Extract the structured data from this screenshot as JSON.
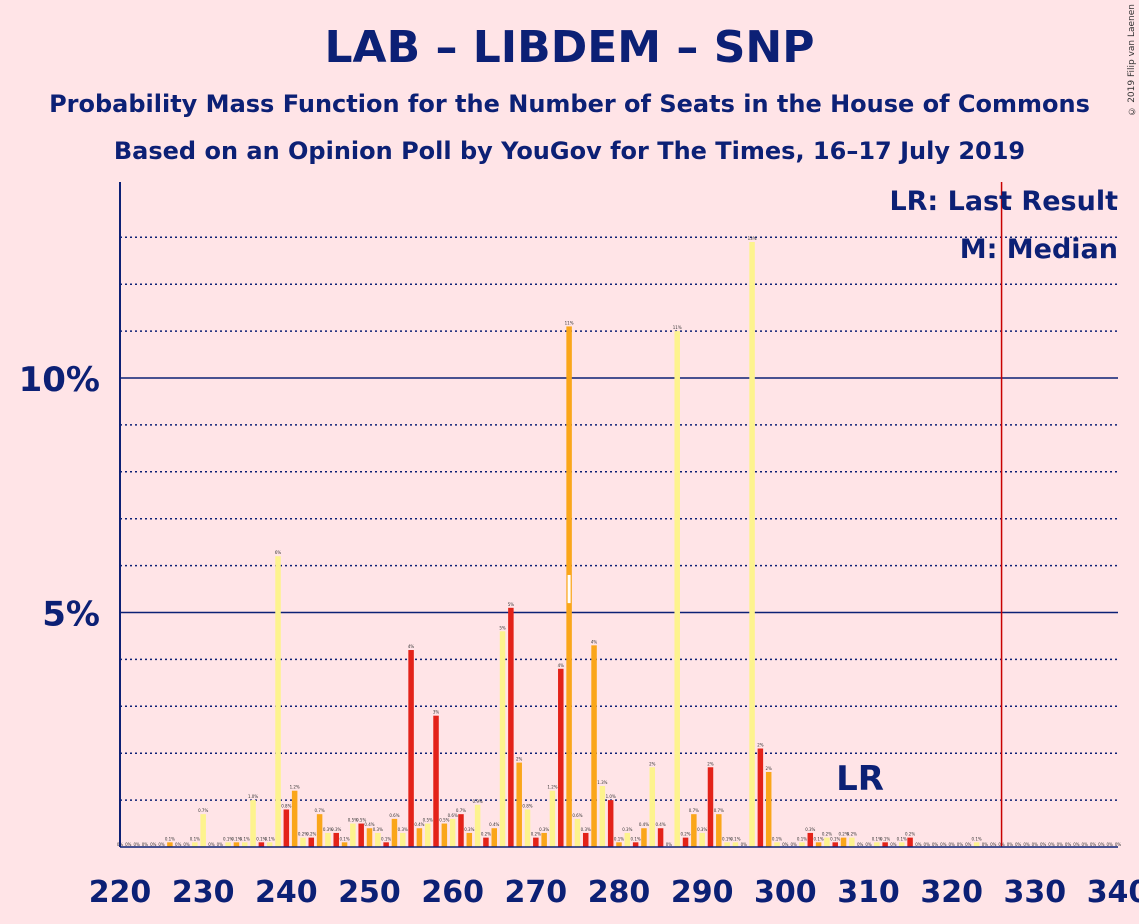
{
  "title": "LAB – LIBDEM – SNP",
  "subtitle1": "Probability Mass Function for the Number of Seats in the House of Commons",
  "subtitle2": "Based on an Opinion Poll by YouGov for The Times, 16–17 July 2019",
  "copyright": "© 2019 Filip van Laenen",
  "legend": {
    "lr": "LR: Last Result",
    "median": "M: Median"
  },
  "lr_marker": "LR",
  "colors": {
    "background": "#FFE4E7",
    "axis": "#0C2075",
    "red": "#E32219",
    "orange": "#FAA61A",
    "yellow": "#FDF38E",
    "last_result_line": "#C80000"
  },
  "chart_data": {
    "type": "bar",
    "xlabel": "",
    "ylabel": "",
    "xlim": [
      220,
      340
    ],
    "ylim": [
      0,
      14
    ],
    "x_ticks": [
      "220",
      "230",
      "240",
      "250",
      "260",
      "270",
      "280",
      "290",
      "300",
      "310",
      "320",
      "330",
      "340"
    ],
    "y_ticks": [
      {
        "value": 5,
        "label": "5%"
      },
      {
        "value": 10,
        "label": "10%"
      }
    ],
    "last_result": 326,
    "median": 274,
    "bars": [
      [
        226,
        0.1,
        "orange",
        "0.1%"
      ],
      [
        229,
        0.1,
        "yellow",
        "0.1%"
      ],
      [
        230,
        0.7,
        "yellow",
        "0.7%"
      ],
      [
        233,
        0.1,
        "yellow",
        "0.1%"
      ],
      [
        234,
        0.1,
        "orange",
        "0.1%"
      ],
      [
        235,
        0.1,
        "yellow",
        "0.1%"
      ],
      [
        236,
        1.0,
        "yellow",
        "1.0%"
      ],
      [
        237,
        0.1,
        "red",
        "0.1%"
      ],
      [
        238,
        0.1,
        "yellow",
        "0.1%"
      ],
      [
        239,
        6.2,
        "yellow",
        "6%"
      ],
      [
        240,
        0.8,
        "red",
        "0.8%"
      ],
      [
        241,
        1.2,
        "orange",
        "1.2%"
      ],
      [
        242,
        0.2,
        "yellow",
        "0.2%"
      ],
      [
        243,
        0.2,
        "red",
        "0.2%"
      ],
      [
        244,
        0.7,
        "orange",
        "0.7%"
      ],
      [
        245,
        0.3,
        "yellow",
        "0.3%"
      ],
      [
        246,
        0.3,
        "red",
        "0.3%"
      ],
      [
        247,
        0.1,
        "orange",
        "0.1%"
      ],
      [
        248,
        0.5,
        "yellow",
        "0.5%"
      ],
      [
        249,
        0.5,
        "red",
        "0.5%"
      ],
      [
        250,
        0.4,
        "orange",
        "0.4%"
      ],
      [
        251,
        0.3,
        "yellow",
        "0.3%"
      ],
      [
        252,
        0.1,
        "red",
        "0.1%"
      ],
      [
        253,
        0.6,
        "orange",
        "0.6%"
      ],
      [
        254,
        0.3,
        "yellow",
        "0.3%"
      ],
      [
        255,
        4.2,
        "red",
        "4%"
      ],
      [
        256,
        0.4,
        "orange",
        "0.4%"
      ],
      [
        257,
        0.5,
        "yellow",
        "0.5%"
      ],
      [
        258,
        2.8,
        "red",
        "3%"
      ],
      [
        259,
        0.5,
        "orange",
        "0.5%"
      ],
      [
        260,
        0.6,
        "yellow",
        "0.6%"
      ],
      [
        261,
        0.7,
        "red",
        "0.7%"
      ],
      [
        262,
        0.3,
        "orange",
        "0.3%"
      ],
      [
        263,
        0.9,
        "yellow",
        "0.9%"
      ],
      [
        264,
        0.2,
        "red",
        "0.2%"
      ],
      [
        265,
        0.4,
        "orange",
        "0.4%"
      ],
      [
        266,
        4.6,
        "yellow",
        "5%"
      ],
      [
        267,
        5.1,
        "red",
        "5%"
      ],
      [
        268,
        1.8,
        "orange",
        "2%"
      ],
      [
        269,
        0.8,
        "yellow",
        "0.8%"
      ],
      [
        270,
        0.2,
        "red",
        "0.2%"
      ],
      [
        271,
        0.3,
        "orange",
        "0.3%"
      ],
      [
        272,
        1.2,
        "yellow",
        "1.2%"
      ],
      [
        273,
        3.8,
        "red",
        "4%"
      ],
      [
        274,
        11.1,
        "orange",
        "11%"
      ],
      [
        275,
        0.6,
        "yellow",
        "0.6%"
      ],
      [
        276,
        0.3,
        "red",
        "0.3%"
      ],
      [
        277,
        4.3,
        "orange",
        "4%"
      ],
      [
        278,
        1.3,
        "yellow",
        "1.3%"
      ],
      [
        279,
        1.0,
        "red",
        "1.0%"
      ],
      [
        280,
        0.1,
        "orange",
        "0.1%"
      ],
      [
        281,
        0.3,
        "yellow",
        "0.3%"
      ],
      [
        282,
        0.1,
        "red",
        "0.1%"
      ],
      [
        283,
        0.4,
        "orange",
        "0.4%"
      ],
      [
        284,
        1.7,
        "yellow",
        "2%"
      ],
      [
        285,
        0.4,
        "red",
        "0.4%"
      ],
      [
        287,
        11.0,
        "yellow",
        "11%"
      ],
      [
        288,
        0.2,
        "red",
        "0.2%"
      ],
      [
        289,
        0.7,
        "orange",
        "0.7%"
      ],
      [
        290,
        0.3,
        "yellow",
        "0.3%"
      ],
      [
        291,
        1.7,
        "red",
        "2%"
      ],
      [
        292,
        0.7,
        "orange",
        "0.7%"
      ],
      [
        293,
        0.1,
        "yellow",
        "0.1%"
      ],
      [
        294,
        0.1,
        "yellow",
        "0.1%"
      ],
      [
        296,
        12.9,
        "yellow",
        "13%"
      ],
      [
        297,
        2.1,
        "red",
        "2%"
      ],
      [
        298,
        1.6,
        "orange",
        "2%"
      ],
      [
        299,
        0.1,
        "yellow",
        "0.1%"
      ],
      [
        302,
        0.1,
        "yellow",
        "0.1%"
      ],
      [
        303,
        0.3,
        "red",
        "0.3%"
      ],
      [
        304,
        0.1,
        "orange",
        "0.1%"
      ],
      [
        305,
        0.2,
        "yellow",
        "0.2%"
      ],
      [
        306,
        0.1,
        "red",
        "0.1%"
      ],
      [
        307,
        0.2,
        "orange",
        "0.2%"
      ],
      [
        308,
        0.2,
        "yellow",
        "0.2%"
      ],
      [
        311,
        0.1,
        "yellow",
        "0.1%"
      ],
      [
        312,
        0.1,
        "red",
        "0.1%"
      ],
      [
        314,
        0.1,
        "yellow",
        "0.1%"
      ],
      [
        315,
        0.2,
        "red",
        "0.2%"
      ],
      [
        323,
        0.1,
        "yellow",
        "0.1%"
      ]
    ],
    "zero_labels": [
      220,
      221,
      222,
      223,
      224,
      225,
      227,
      228,
      231,
      232,
      286,
      295,
      300,
      301,
      309,
      310,
      313,
      316,
      317,
      318,
      319,
      320,
      321,
      322,
      324,
      325,
      326,
      327,
      328,
      329,
      330,
      331,
      332,
      333,
      334,
      335,
      336,
      337,
      338,
      339,
      340
    ]
  }
}
